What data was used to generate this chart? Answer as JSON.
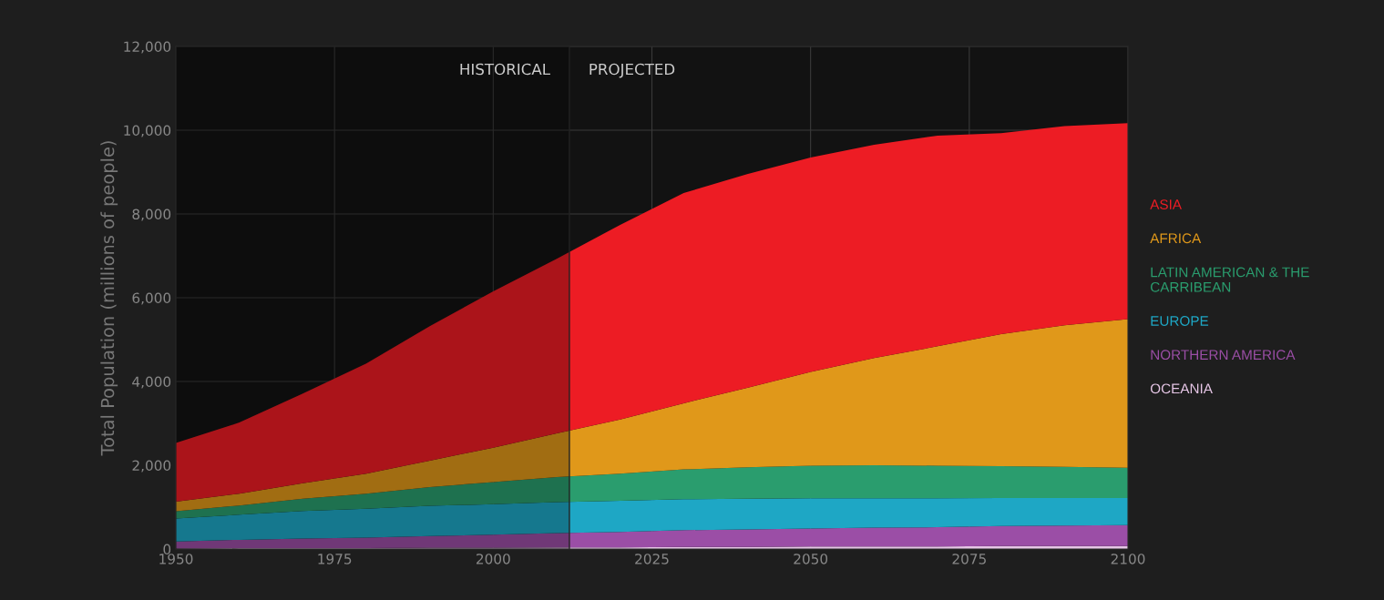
{
  "chart_data": {
    "type": "area",
    "stacked": true,
    "ylabel": "Total Population (millions of people)",
    "x": [
      1950,
      1960,
      1970,
      1980,
      1990,
      2000,
      2010,
      2020,
      2030,
      2040,
      2050,
      2060,
      2070,
      2080,
      2090,
      2100
    ],
    "series": [
      {
        "name": "OCEANIA",
        "color": "#e6c6e6",
        "values": [
          10,
          20,
          20,
          20,
          30,
          30,
          40,
          40,
          50,
          50,
          60,
          60,
          60,
          70,
          70,
          70
        ]
      },
      {
        "name": "NORTHERN AMERICA",
        "color": "#9b4ea6",
        "values": [
          170,
          200,
          230,
          250,
          280,
          310,
          340,
          370,
          400,
          420,
          430,
          450,
          460,
          480,
          490,
          500
        ]
      },
      {
        "name": "EUROPE",
        "color": "#1ea7c5",
        "values": [
          550,
          600,
          660,
          690,
          720,
          730,
          740,
          740,
          740,
          730,
          720,
          700,
          690,
          670,
          660,
          650
        ]
      },
      {
        "name": "LATIN AMERICAN & THE CARRIBEAN",
        "color": "#2a9d6e",
        "values": [
          170,
          220,
          290,
          360,
          450,
          530,
          600,
          650,
          710,
          750,
          780,
          790,
          780,
          760,
          740,
          720
        ]
      },
      {
        "name": "AFRICA",
        "color": "#e0981a",
        "values": [
          230,
          280,
          370,
          480,
          630,
          820,
          1040,
          1290,
          1580,
          1900,
          2240,
          2560,
          2850,
          3150,
          3380,
          3550
        ]
      },
      {
        "name": "ASIA",
        "color": "#ed1c24",
        "values": [
          1400,
          1700,
          2140,
          2630,
          3210,
          3730,
          4170,
          4650,
          5020,
          5100,
          5120,
          5090,
          5030,
          4800,
          4760,
          4680
        ]
      }
    ],
    "xlim": [
      1950,
      2100
    ],
    "xticks": [
      1950,
      1975,
      2000,
      2025,
      2050,
      2075,
      2100
    ],
    "ylim": [
      0,
      12000
    ],
    "yticks": [
      {
        "value": 0,
        "label": "0"
      },
      {
        "value": 2000,
        "label": "2,000"
      },
      {
        "value": 4000,
        "label": "4,000"
      },
      {
        "value": 6000,
        "label": "6,000"
      },
      {
        "value": 8000,
        "label": "8,000"
      },
      {
        "value": 10000,
        "label": "10,000"
      },
      {
        "value": 12000,
        "label": "12,000"
      }
    ],
    "bands": [
      {
        "axis": "x",
        "from": 1950,
        "to": 2012,
        "label": "HISTORICAL",
        "color": "#000000"
      }
    ],
    "ref_lines": [
      {
        "axis": "x",
        "value": 2012,
        "label": "PROJECTED",
        "color": "#222222"
      }
    ],
    "grid": true,
    "legend": "right"
  }
}
